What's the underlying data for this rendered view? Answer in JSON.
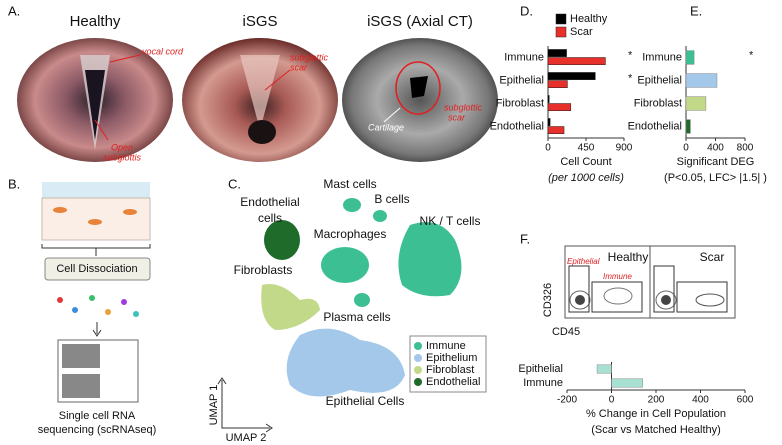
{
  "panel_a": {
    "label": "A.",
    "images": [
      {
        "title": "Healthy",
        "notes": [
          [
            "vocal cord"
          ],
          [
            "Open",
            "subglottis"
          ]
        ]
      },
      {
        "title": "iSGS",
        "notes": [
          [
            "subglottic",
            "scar"
          ]
        ]
      },
      {
        "title": "iSGS (Axial CT)",
        "notes": [
          [
            "Cartilage"
          ],
          [
            "subglottic",
            "scar"
          ]
        ]
      }
    ]
  },
  "panel_b": {
    "label": "B.",
    "step": "Cell Dissociation",
    "output": [
      "Single cell RNA",
      "sequencing (scRNAseq)"
    ]
  },
  "panel_c": {
    "label": "C.",
    "clusters": {
      "mast": [
        "Mast cells"
      ],
      "b": [
        "B cells"
      ],
      "endothelial": [
        "Endothelial",
        "cells"
      ],
      "macrophages": [
        "Macrophages"
      ],
      "nkt": [
        "NK / T cells"
      ],
      "fibroblasts": [
        "Fibroblasts"
      ],
      "plasma": [
        "Plasma cells"
      ],
      "epithelial": [
        "Epithelial Cells"
      ]
    },
    "legend": [
      {
        "name": "Immune",
        "color": "#3dbf94"
      },
      {
        "name": "Epithelium",
        "color": "#a3c8ea"
      },
      {
        "name": "Fibroblast",
        "color": "#c2d98a"
      },
      {
        "name": "Endothelial",
        "color": "#1e6b2a"
      }
    ],
    "y_axis": "UMAP 1",
    "x_axis": "UMAP 2"
  },
  "panel_f": {
    "label": "F.",
    "conditions": [
      "Healthy",
      "Scar"
    ],
    "gates": [
      "Epithelial",
      "Immune"
    ],
    "y_axis": "CD326",
    "x_axis": "CD45"
  },
  "chart_data": [
    {
      "type": "bar",
      "label": "D.",
      "categories": [
        "Immune",
        "Epithelial",
        "Fibroblast",
        "Endothelial"
      ],
      "series": [
        {
          "name": "Healthy",
          "color": "#000000",
          "values": [
            220,
            560,
            15,
            25
          ]
        },
        {
          "name": "Scar",
          "color": "#e8302a",
          "values": [
            680,
            230,
            270,
            190
          ]
        }
      ],
      "significance": [
        "*",
        "*",
        null,
        null
      ],
      "xlim": [
        0,
        900
      ],
      "xticks": [
        0,
        450,
        900
      ],
      "xlabel": "Cell Count",
      "xlabel_note": "(per 1000 cells)"
    },
    {
      "type": "bar",
      "label": "E.",
      "categories": [
        "Immune",
        "Epithelial",
        "Fibroblast",
        "Endothelial"
      ],
      "values": [
        110,
        420,
        270,
        60
      ],
      "colors": [
        "#3dbf94",
        "#a3c8ea",
        "#c2d98a",
        "#1e6b2a"
      ],
      "significance": [
        "*",
        null,
        null,
        null
      ],
      "xlim": [
        0,
        800
      ],
      "xticks": [
        0,
        400,
        800
      ],
      "xlabel": "Significant DEG",
      "xlabel_note": "(P<0.05,  LFC> |1.5| )"
    },
    {
      "type": "bar",
      "categories": [
        "Epithelial",
        "Immune"
      ],
      "values": [
        -65,
        140
      ],
      "colors": [
        "#a8e0d2",
        "#a8e0d2"
      ],
      "xlim": [
        -200,
        600
      ],
      "xticks": [
        -200,
        0,
        200,
        400,
        600
      ],
      "xlabel": "% Change in Cell Population",
      "xlabel_note": "(Scar vs Matched Healthy)"
    }
  ]
}
